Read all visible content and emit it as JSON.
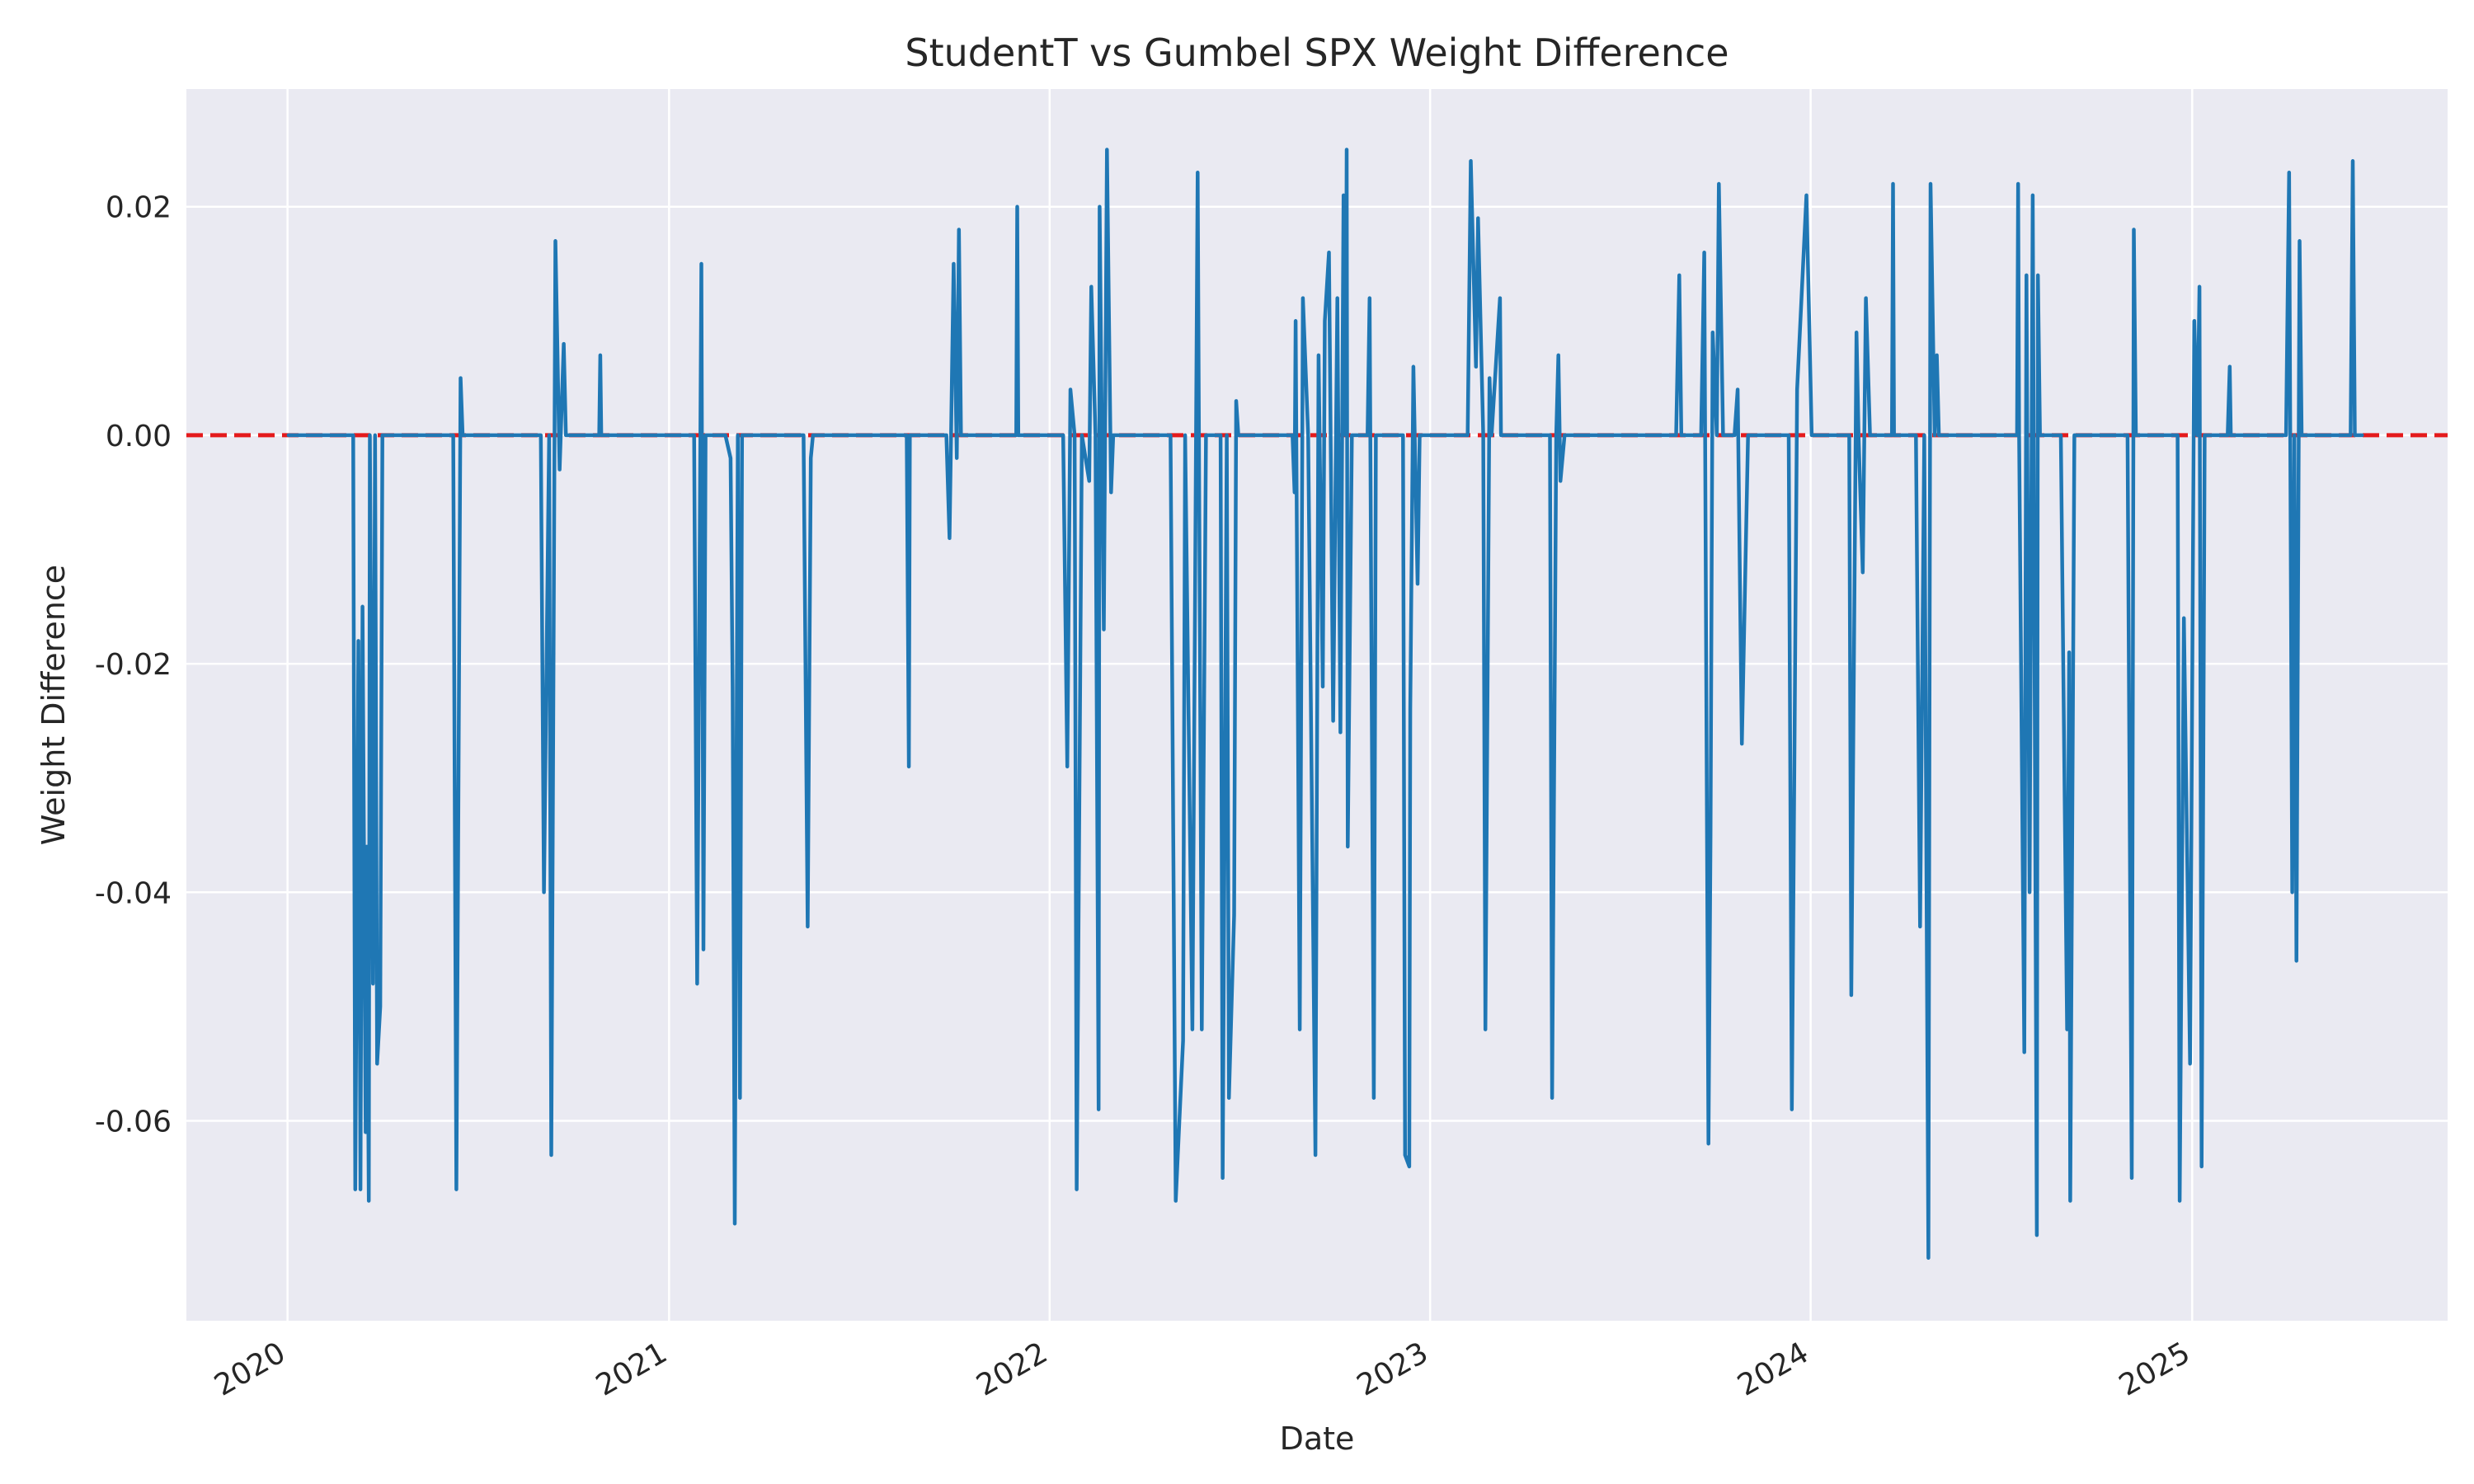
{
  "chart_data": {
    "type": "line",
    "title": "StudentT vs Gumbel SPX Weight Difference",
    "xlabel": "Date",
    "ylabel": "Weight Difference",
    "x_axis_type": "date",
    "xlim": [
      "2019-09-26",
      "2025-09-03"
    ],
    "ylim": [
      -0.0775,
      0.0303
    ],
    "grid": true,
    "legend": "none",
    "x_ticks": [
      {
        "label": "2020",
        "date": "2020-01-01"
      },
      {
        "label": "2021",
        "date": "2021-01-01"
      },
      {
        "label": "2022",
        "date": "2022-01-01"
      },
      {
        "label": "2023",
        "date": "2023-01-01"
      },
      {
        "label": "2024",
        "date": "2024-01-01"
      },
      {
        "label": "2025",
        "date": "2025-01-01"
      }
    ],
    "y_ticks": [
      {
        "label": "0.02",
        "value": 0.02
      },
      {
        "label": "0.00",
        "value": 0.0
      },
      {
        "label": "-0.02",
        "value": -0.02
      },
      {
        "label": "-0.04",
        "value": -0.04
      },
      {
        "label": "-0.06",
        "value": -0.06
      }
    ],
    "reference_line": {
      "value": 0.0,
      "color": "#e41a1c",
      "style": "dashed"
    },
    "colors": {
      "series": "#1f77b4",
      "plot_background": "#eaeaf2",
      "grid": "#ffffff",
      "text": "#262626"
    },
    "series": [
      {
        "values": [
          [
            "2020-01-02",
            0
          ],
          [
            "2020-03-04",
            0
          ],
          [
            "2020-03-06",
            -0.066
          ],
          [
            "2020-03-09",
            -0.018
          ],
          [
            "2020-03-11",
            -0.066
          ],
          [
            "2020-03-13",
            -0.015
          ],
          [
            "2020-03-16",
            -0.061
          ],
          [
            "2020-03-17",
            -0.036
          ],
          [
            "2020-03-19",
            -0.067
          ],
          [
            "2020-03-20",
            0
          ],
          [
            "2020-03-23",
            -0.048
          ],
          [
            "2020-03-25",
            0
          ],
          [
            "2020-03-27",
            -0.055
          ],
          [
            "2020-03-30",
            -0.05
          ],
          [
            "2020-04-01",
            0
          ],
          [
            "2020-06-08",
            0
          ],
          [
            "2020-06-11",
            -0.066
          ],
          [
            "2020-06-15",
            0.005
          ],
          [
            "2020-06-17",
            0
          ],
          [
            "2020-08-31",
            0
          ],
          [
            "2020-09-03",
            -0.04
          ],
          [
            "2020-09-08",
            0
          ],
          [
            "2020-09-10",
            -0.063
          ],
          [
            "2020-09-14",
            0.017
          ],
          [
            "2020-09-18",
            -0.003
          ],
          [
            "2020-09-22",
            0.008
          ],
          [
            "2020-09-24",
            0
          ],
          [
            "2020-10-26",
            0
          ],
          [
            "2020-10-27",
            0.007
          ],
          [
            "2020-10-28",
            0
          ],
          [
            "2021-01-25",
            0
          ],
          [
            "2021-01-28",
            -0.048
          ],
          [
            "2021-02-01",
            0.015
          ],
          [
            "2021-02-03",
            -0.045
          ],
          [
            "2021-02-05",
            0
          ],
          [
            "2021-02-24",
            0
          ],
          [
            "2021-03-01",
            -0.002
          ],
          [
            "2021-03-03",
            -0.022
          ],
          [
            "2021-03-05",
            -0.069
          ],
          [
            "2021-03-08",
            0
          ],
          [
            "2021-03-10",
            -0.058
          ],
          [
            "2021-03-12",
            0
          ],
          [
            "2021-05-10",
            0
          ],
          [
            "2021-05-14",
            -0.043
          ],
          [
            "2021-05-17",
            -0.002
          ],
          [
            "2021-05-19",
            0
          ],
          [
            "2021-08-17",
            0
          ],
          [
            "2021-08-19",
            -0.029
          ],
          [
            "2021-08-20",
            0
          ],
          [
            "2021-09-24",
            0
          ],
          [
            "2021-09-27",
            -0.009
          ],
          [
            "2021-10-01",
            0.015
          ],
          [
            "2021-10-04",
            -0.002
          ],
          [
            "2021-10-06",
            0.018
          ],
          [
            "2021-10-08",
            0
          ],
          [
            "2021-11-30",
            0
          ],
          [
            "2021-12-01",
            0.02
          ],
          [
            "2021-12-02",
            0
          ],
          [
            "2022-01-14",
            0
          ],
          [
            "2022-01-18",
            -0.029
          ],
          [
            "2022-01-21",
            0.004
          ],
          [
            "2022-01-25",
            0
          ],
          [
            "2022-01-27",
            -0.066
          ],
          [
            "2022-02-01",
            0
          ],
          [
            "2022-02-08",
            -0.004
          ],
          [
            "2022-02-10",
            0.013
          ],
          [
            "2022-02-14",
            0
          ],
          [
            "2022-02-17",
            -0.059
          ],
          [
            "2022-02-18",
            0.02
          ],
          [
            "2022-02-22",
            -0.017
          ],
          [
            "2022-02-25",
            0.025
          ],
          [
            "2022-03-01",
            -0.005
          ],
          [
            "2022-03-03",
            0
          ],
          [
            "2022-04-27",
            0
          ],
          [
            "2022-05-02",
            -0.067
          ],
          [
            "2022-05-04",
            -0.063
          ],
          [
            "2022-05-09",
            -0.053
          ],
          [
            "2022-05-11",
            0
          ],
          [
            "2022-05-18",
            -0.052
          ],
          [
            "2022-05-23",
            0.023
          ],
          [
            "2022-05-27",
            -0.052
          ],
          [
            "2022-05-31",
            0
          ],
          [
            "2022-06-14",
            0
          ],
          [
            "2022-06-16",
            -0.065
          ],
          [
            "2022-06-20",
            0
          ],
          [
            "2022-06-22",
            -0.058
          ],
          [
            "2022-06-27",
            -0.042
          ],
          [
            "2022-06-29",
            0.003
          ],
          [
            "2022-07-01",
            0
          ],
          [
            "2022-08-22",
            0
          ],
          [
            "2022-08-24",
            -0.005
          ],
          [
            "2022-08-25",
            0.01
          ],
          [
            "2022-08-29",
            -0.052
          ],
          [
            "2022-09-01",
            0.012
          ],
          [
            "2022-09-06",
            0
          ],
          [
            "2022-09-13",
            -0.063
          ],
          [
            "2022-09-16",
            0.007
          ],
          [
            "2022-09-20",
            -0.022
          ],
          [
            "2022-09-22",
            0.01
          ],
          [
            "2022-09-26",
            0.016
          ],
          [
            "2022-09-27",
            0.006
          ],
          [
            "2022-09-30",
            -0.025
          ],
          [
            "2022-10-04",
            0.012
          ],
          [
            "2022-10-07",
            -0.026
          ],
          [
            "2022-10-10",
            0.021
          ],
          [
            "2022-10-12",
            0
          ],
          [
            "2022-10-13",
            0.025
          ],
          [
            "2022-10-14",
            -0.036
          ],
          [
            "2022-10-18",
            0
          ],
          [
            "2022-11-02",
            0
          ],
          [
            "2022-11-04",
            0.012
          ],
          [
            "2022-11-08",
            -0.058
          ],
          [
            "2022-11-10",
            0
          ],
          [
            "2022-12-06",
            0
          ],
          [
            "2022-12-08",
            -0.063
          ],
          [
            "2022-12-12",
            -0.064
          ],
          [
            "2022-12-13",
            -0.024
          ],
          [
            "2022-12-16",
            0.006
          ],
          [
            "2022-12-20",
            -0.013
          ],
          [
            "2022-12-22",
            0
          ],
          [
            "2023-02-06",
            0
          ],
          [
            "2023-02-09",
            0.024
          ],
          [
            "2023-02-14",
            0.006
          ],
          [
            "2023-02-16",
            0.019
          ],
          [
            "2023-02-21",
            0
          ],
          [
            "2023-02-23",
            -0.052
          ],
          [
            "2023-02-27",
            0.005
          ],
          [
            "2023-03-01",
            0
          ],
          [
            "2023-03-09",
            0.012
          ],
          [
            "2023-03-10",
            0
          ],
          [
            "2023-04-26",
            0
          ],
          [
            "2023-04-28",
            -0.058
          ],
          [
            "2023-05-02",
            0
          ],
          [
            "2023-05-04",
            0.007
          ],
          [
            "2023-05-06",
            -0.004
          ],
          [
            "2023-05-10",
            0
          ],
          [
            "2023-08-25",
            0
          ],
          [
            "2023-08-28",
            0.014
          ],
          [
            "2023-08-30",
            0
          ],
          [
            "2023-09-18",
            0
          ],
          [
            "2023-09-21",
            0.016
          ],
          [
            "2023-09-25",
            -0.062
          ],
          [
            "2023-09-27",
            -0.035
          ],
          [
            "2023-09-29",
            0.009
          ],
          [
            "2023-10-03",
            0
          ],
          [
            "2023-10-05",
            0.022
          ],
          [
            "2023-10-09",
            0
          ],
          [
            "2023-10-20",
            0
          ],
          [
            "2023-10-23",
            0.004
          ],
          [
            "2023-10-27",
            -0.027
          ],
          [
            "2023-11-02",
            0
          ],
          [
            "2023-12-11",
            0
          ],
          [
            "2023-12-14",
            -0.059
          ],
          [
            "2023-12-19",
            0.004
          ],
          [
            "2023-12-28",
            0.021
          ],
          [
            "2024-01-02",
            0
          ],
          [
            "2024-02-07",
            0
          ],
          [
            "2024-02-09",
            -0.049
          ],
          [
            "2024-02-14",
            0.009
          ],
          [
            "2024-02-16",
            0
          ],
          [
            "2024-02-20",
            -0.012
          ],
          [
            "2024-02-23",
            0.012
          ],
          [
            "2024-02-27",
            0
          ],
          [
            "2024-03-19",
            0
          ],
          [
            "2024-03-20",
            0.022
          ],
          [
            "2024-03-21",
            0
          ],
          [
            "2024-04-11",
            0
          ],
          [
            "2024-04-15",
            -0.043
          ],
          [
            "2024-04-19",
            0
          ],
          [
            "2024-04-23",
            -0.072
          ],
          [
            "2024-04-25",
            0.022
          ],
          [
            "2024-04-29",
            0
          ],
          [
            "2024-05-01",
            0.007
          ],
          [
            "2024-05-03",
            0
          ],
          [
            "2024-07-17",
            0
          ],
          [
            "2024-07-18",
            0.022
          ],
          [
            "2024-07-19",
            0
          ],
          [
            "2024-07-24",
            -0.054
          ],
          [
            "2024-07-26",
            0.014
          ],
          [
            "2024-07-29",
            -0.04
          ],
          [
            "2024-08-01",
            0.021
          ],
          [
            "2024-08-05",
            -0.07
          ],
          [
            "2024-08-06",
            0.014
          ],
          [
            "2024-08-08",
            0
          ],
          [
            "2024-08-28",
            0
          ],
          [
            "2024-09-03",
            -0.052
          ],
          [
            "2024-09-05",
            -0.019
          ],
          [
            "2024-09-06",
            -0.067
          ],
          [
            "2024-09-10",
            0
          ],
          [
            "2024-10-31",
            0
          ],
          [
            "2024-11-04",
            -0.065
          ],
          [
            "2024-11-06",
            0.018
          ],
          [
            "2024-11-08",
            0
          ],
          [
            "2024-12-18",
            0
          ],
          [
            "2024-12-20",
            -0.067
          ],
          [
            "2024-12-24",
            -0.016
          ],
          [
            "2024-12-30",
            -0.055
          ],
          [
            "2025-01-03",
            0.01
          ],
          [
            "2025-01-06",
            0
          ],
          [
            "2025-01-08",
            0.013
          ],
          [
            "2025-01-10",
            -0.064
          ],
          [
            "2025-01-13",
            0
          ],
          [
            "2025-02-04",
            0
          ],
          [
            "2025-02-06",
            0.006
          ],
          [
            "2025-02-07",
            0
          ],
          [
            "2025-04-01",
            0
          ],
          [
            "2025-04-04",
            0.023
          ],
          [
            "2025-04-07",
            -0.04
          ],
          [
            "2025-04-09",
            0
          ],
          [
            "2025-04-11",
            -0.046
          ],
          [
            "2025-04-14",
            0.017
          ],
          [
            "2025-04-16",
            0
          ],
          [
            "2025-06-02",
            0
          ],
          [
            "2025-06-04",
            0.024
          ],
          [
            "2025-06-06",
            0
          ],
          [
            "2025-06-13",
            0
          ]
        ]
      }
    ]
  }
}
